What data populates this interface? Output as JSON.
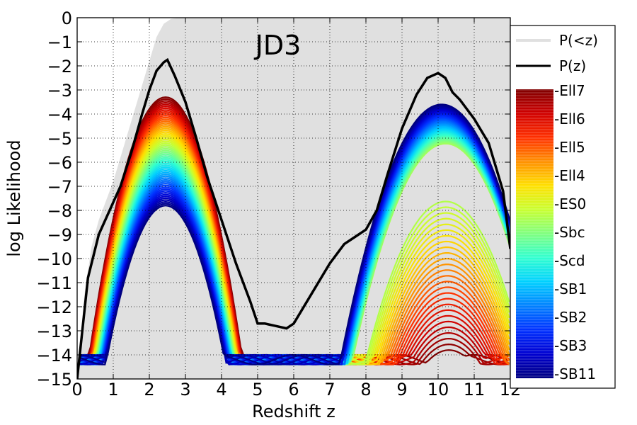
{
  "chart_data": {
    "type": "line",
    "title": "JD3",
    "xlabel": "Redshift  z",
    "ylabel": "log Likelihood",
    "xlim": [
      0,
      12
    ],
    "ylim": [
      -15,
      0
    ],
    "x_ticks": [
      "0",
      "1",
      "2",
      "3",
      "4",
      "5",
      "6",
      "7",
      "8",
      "9",
      "10",
      "11",
      "12"
    ],
    "y_ticks": [
      "0",
      "−1",
      "−2",
      "−3",
      "−4",
      "−5",
      "−6",
      "−7",
      "−8",
      "−9",
      "−10",
      "−11",
      "−12",
      "−13",
      "−14",
      "−15"
    ],
    "grid": true,
    "legend_position": "right",
    "legend": {
      "cumulative_label": "P(<z)",
      "pz_label": "P(z)",
      "colorbar_labels": [
        "-Ell7",
        "-Ell6",
        "-Ell5",
        "-Ell4",
        "-ES0",
        "-Sbc",
        "-Scd",
        "-SB1",
        "-SB2",
        "-SB3",
        "-SB11"
      ]
    },
    "colors": {
      "cumulative_fill": "#e0e0e0",
      "pz_line": "#000000",
      "colormap": [
        "#800000",
        "#d00000",
        "#ff3000",
        "#ff9000",
        "#ffe000",
        "#c8ff30",
        "#7fff80",
        "#30ffd0",
        "#00d0ff",
        "#0080ff",
        "#0030ff",
        "#0000d0",
        "#000080"
      ]
    },
    "cumulative": {
      "x": [
        0,
        0.2,
        0.4,
        0.6,
        0.8,
        1,
        1.2,
        1.4,
        1.6,
        1.8,
        2,
        2.2,
        2.4,
        2.6,
        2.8,
        3,
        12
      ],
      "y": [
        -15,
        -11.5,
        -9.5,
        -8.4,
        -7.6,
        -6.8,
        -5.8,
        -4.8,
        -3.8,
        -2.8,
        -1.8,
        -0.8,
        -0.25,
        -0.05,
        0,
        0,
        0
      ]
    },
    "pz": {
      "x": [
        0,
        0.3,
        0.6,
        0.9,
        1.2,
        1.5,
        1.8,
        2.0,
        2.2,
        2.4,
        2.5,
        2.7,
        3.0,
        3.3,
        3.6,
        4.0,
        4.4,
        4.8,
        5.0,
        5.2,
        5.5,
        5.8,
        6.0,
        6.2,
        6.6,
        7.0,
        7.4,
        7.8,
        8.0,
        8.3,
        8.6,
        9.0,
        9.4,
        9.7,
        10.0,
        10.2,
        10.4,
        10.6,
        11.0,
        11.4,
        11.8,
        12
      ],
      "y": [
        -15,
        -10.8,
        -9.0,
        -8.0,
        -7.0,
        -5.6,
        -4.0,
        -3.0,
        -2.2,
        -1.85,
        -1.75,
        -2.4,
        -3.5,
        -5.0,
        -6.6,
        -8.4,
        -10.2,
        -11.8,
        -12.7,
        -12.7,
        -12.8,
        -12.9,
        -12.7,
        -12.2,
        -11.2,
        -10.2,
        -9.4,
        -9.0,
        -8.8,
        -8.0,
        -6.5,
        -4.6,
        -3.2,
        -2.5,
        -2.3,
        -2.5,
        -3.1,
        -3.4,
        -4.2,
        -5.2,
        -7.2,
        -9.6
      ]
    }
  }
}
